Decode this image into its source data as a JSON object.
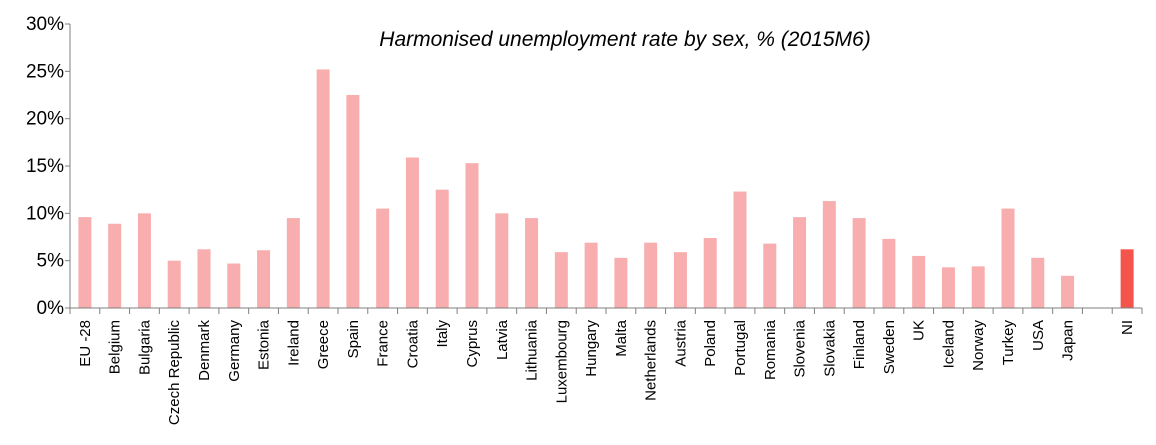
{
  "chart_data": {
    "type": "bar",
    "title": "Harmonised unemployment rate by sex, % (2015M6)",
    "xlabel": "",
    "ylabel": "",
    "ylim": [
      0,
      30
    ],
    "yticks": [
      "0%",
      "5%",
      "10%",
      "15%",
      "20%",
      "25%",
      "30%"
    ],
    "grid": false,
    "categories": [
      "EU -28",
      "Belgium",
      "Bulgaria",
      "Czech Republic",
      "Denmark",
      "Germany",
      "Estonia",
      "Ireland",
      "Greece",
      "Spain",
      "France",
      "Croatia",
      "Italy",
      "Cyprus",
      "Latvia",
      "Lithuania",
      "Luxembourg",
      "Hungary",
      "Malta",
      "Netherlands",
      "Austria",
      "Poland",
      "Portugal",
      "Romania",
      "Slovenia",
      "Slovakia",
      "Finland",
      "Sweden",
      "UK",
      "Iceland",
      "Norway",
      "Turkey",
      "USA",
      "Japan",
      "",
      "NI"
    ],
    "values": [
      9.6,
      8.9,
      10.0,
      5.0,
      6.2,
      4.7,
      6.1,
      9.5,
      25.2,
      22.5,
      10.5,
      15.9,
      12.5,
      15.3,
      10.0,
      9.5,
      5.9,
      6.9,
      5.3,
      6.9,
      5.9,
      7.4,
      12.3,
      6.8,
      9.6,
      11.3,
      9.5,
      7.3,
      5.5,
      4.3,
      4.4,
      10.5,
      5.3,
      3.4,
      null,
      6.2
    ],
    "colors": {
      "bar": "#f8aeae",
      "highlight": "#f4544c",
      "axis": "#7f7f7f"
    },
    "highlight_category": "NI"
  }
}
